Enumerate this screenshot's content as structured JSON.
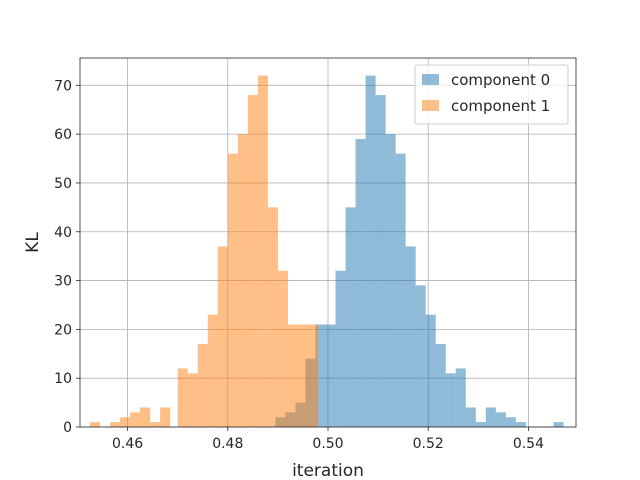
{
  "chart_data": {
    "type": "histogram",
    "title": "",
    "xlabel": "iteration",
    "ylabel": "KL",
    "xlim": [
      0.4505,
      0.5495
    ],
    "ylim": [
      0,
      75.6
    ],
    "xticks": [
      0.46,
      0.48,
      0.5,
      0.52,
      0.54
    ],
    "xtick_labels": [
      "0.46",
      "0.48",
      "0.50",
      "0.52",
      "0.54"
    ],
    "yticks": [
      0,
      10,
      20,
      30,
      40,
      50,
      60,
      70
    ],
    "ytick_labels": [
      "0",
      "10",
      "20",
      "30",
      "40",
      "50",
      "60",
      "70"
    ],
    "grid": true,
    "legend_position": "upper right",
    "series": [
      {
        "name": "component 0",
        "color": "#1f77b4",
        "opacity": 0.5,
        "bins": [
          [
            0.4895,
            0.4915,
            2
          ],
          [
            0.4915,
            0.4935,
            3
          ],
          [
            0.4935,
            0.4955,
            5
          ],
          [
            0.4955,
            0.4975,
            14
          ],
          [
            0.4975,
            0.4995,
            21
          ],
          [
            0.4995,
            0.5015,
            21
          ],
          [
            0.5015,
            0.5035,
            32
          ],
          [
            0.5035,
            0.5055,
            45
          ],
          [
            0.5055,
            0.5075,
            59
          ],
          [
            0.5075,
            0.5095,
            72
          ],
          [
            0.5095,
            0.5115,
            68
          ],
          [
            0.5115,
            0.5135,
            60
          ],
          [
            0.5135,
            0.5155,
            56
          ],
          [
            0.5155,
            0.5175,
            37
          ],
          [
            0.5175,
            0.5195,
            29
          ],
          [
            0.5195,
            0.5215,
            23
          ],
          [
            0.5215,
            0.5235,
            17
          ],
          [
            0.5235,
            0.5255,
            11
          ],
          [
            0.5255,
            0.5275,
            12
          ],
          [
            0.5275,
            0.5295,
            4
          ],
          [
            0.5295,
            0.5315,
            1
          ],
          [
            0.5315,
            0.5335,
            4
          ],
          [
            0.5335,
            0.5355,
            3
          ],
          [
            0.5355,
            0.5375,
            2
          ],
          [
            0.5375,
            0.5395,
            1
          ],
          [
            0.545,
            0.547,
            1
          ]
        ]
      },
      {
        "name": "component 1",
        "color": "#ff7f0e",
        "opacity": 0.5,
        "bins": [
          [
            0.4525,
            0.4545,
            1
          ],
          [
            0.4565,
            0.4585,
            1
          ],
          [
            0.4585,
            0.4605,
            2
          ],
          [
            0.4605,
            0.4625,
            3
          ],
          [
            0.4625,
            0.4645,
            4
          ],
          [
            0.4645,
            0.4665,
            1
          ],
          [
            0.4665,
            0.4685,
            4
          ],
          [
            0.47,
            0.472,
            12
          ],
          [
            0.472,
            0.474,
            11
          ],
          [
            0.474,
            0.476,
            17
          ],
          [
            0.476,
            0.478,
            23
          ],
          [
            0.478,
            0.48,
            37
          ],
          [
            0.48,
            0.482,
            56
          ],
          [
            0.482,
            0.484,
            60
          ],
          [
            0.484,
            0.486,
            68
          ],
          [
            0.486,
            0.488,
            72
          ],
          [
            0.488,
            0.49,
            45
          ],
          [
            0.49,
            0.492,
            32
          ],
          [
            0.492,
            0.494,
            21
          ],
          [
            0.494,
            0.496,
            21
          ],
          [
            0.496,
            0.498,
            21
          ]
        ]
      }
    ]
  }
}
